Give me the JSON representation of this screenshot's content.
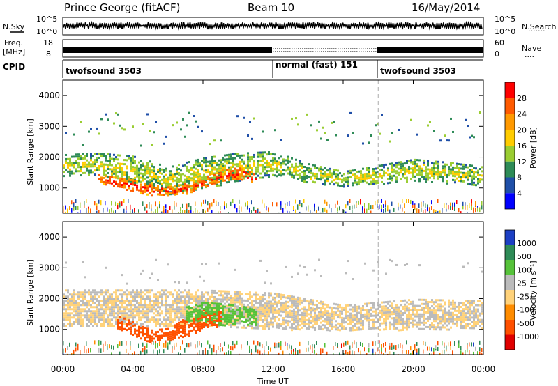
{
  "header": {
    "station": "Prince George (fitACF)",
    "beam": "Beam 10",
    "date": "16/May/2014"
  },
  "nsky_panel": {
    "left_label": "N.Sky",
    "left_ticks": [
      "10^5",
      "10^0"
    ],
    "right_ticks": [
      "10^5",
      "10^0"
    ],
    "right_label": "N.Search",
    "right_marker": "·······"
  },
  "freq_panel": {
    "left_label_1": "Freq.",
    "left_label_2": "[MHz]",
    "left_ticks": [
      "18",
      "8"
    ],
    "right_ticks": [
      "60",
      "0"
    ],
    "right_label": "Nave",
    "right_marker": "····"
  },
  "cpid_panel": {
    "label": "CPID",
    "segments": [
      {
        "name": "twofsound 3503",
        "start_h": 0,
        "end_h": 12
      },
      {
        "name": "normal (fast) 151",
        "start_h": 12,
        "end_h": 18
      },
      {
        "name": "twofsound 3503",
        "start_h": 18,
        "end_h": 24
      }
    ]
  },
  "axes": {
    "xlabel": "Time UT",
    "xticks": [
      "00:00",
      "04:00",
      "08:00",
      "12:00",
      "16:00",
      "20:00",
      "00:00"
    ],
    "xlim_h": [
      0,
      24
    ],
    "ylabel": "Slant Range [km]",
    "yticks": [
      "4000",
      "3000",
      "2000",
      "1000"
    ],
    "ylim_km": [
      180,
      4500
    ],
    "mode_change_h": [
      12,
      18
    ]
  },
  "power_colorbar": {
    "label": "Power [dB]",
    "ticks": [
      "28",
      "24",
      "20",
      "16",
      "12",
      "8",
      "4"
    ],
    "colors": [
      "#ff0000",
      "#ff5a00",
      "#ff9900",
      "#ffcc00",
      "#9acd32",
      "#2e8b57",
      "#1f4fa8",
      "#0000ff"
    ]
  },
  "velocity_colorbar": {
    "label": "Velocity [m s⁻¹]",
    "ticks": [
      "1000",
      "500",
      "100",
      "25",
      "-25",
      "-100",
      "-500",
      "-1000"
    ],
    "colors": [
      "#1c3fc4",
      "#2e8b57",
      "#56c23a",
      "#bbbbbb",
      "#ffd27a",
      "#ff8c00",
      "#ff5000",
      "#e00000"
    ]
  },
  "chart_data": [
    {
      "type": "heatmap",
      "title": "Power",
      "xlabel": "Time UT",
      "ylabel": "Slant Range [km]",
      "x_unit": "hours UT",
      "ylim": [
        180,
        4500
      ],
      "colorbar": "Power [dB]",
      "bands": [
        {
          "x": [
            0,
            2,
            4,
            6,
            8,
            10,
            12,
            14,
            16,
            18,
            20,
            22,
            24
          ],
          "y_center": [
            1750,
            1800,
            1600,
            1250,
            1500,
            1700,
            1800,
            1500,
            1300,
            1450,
            1600,
            1500,
            1400
          ],
          "y_width": [
            700,
            700,
            900,
            900,
            1000,
            900,
            800,
            600,
            500,
            600,
            700,
            700,
            600
          ],
          "level_db": 14
        },
        {
          "x": [
            2,
            4,
            5,
            6,
            7,
            8,
            9,
            10,
            11
          ],
          "y_center": [
            1300,
            1100,
            950,
            900,
            1000,
            1200,
            1400,
            1500,
            1300
          ],
          "y_width": [
            300,
            350,
            350,
            300,
            350,
            400,
            400,
            350,
            300
          ],
          "level_db": 26
        }
      ]
    },
    {
      "type": "heatmap",
      "title": "Velocity",
      "xlabel": "Time UT",
      "ylabel": "Slant Range [km]",
      "x_unit": "hours UT",
      "ylim": [
        180,
        4500
      ],
      "colorbar": "Velocity [m s⁻¹]",
      "bands": [
        {
          "x": [
            0,
            4,
            8,
            12,
            16,
            20,
            24
          ],
          "y_center": [
            1700,
            1700,
            1700,
            1600,
            1400,
            1500,
            1500
          ],
          "y_width": [
            1200,
            1200,
            1200,
            1200,
            800,
            1000,
            900
          ],
          "velocity": 0
        },
        {
          "x": [
            3,
            4,
            5,
            6,
            7,
            8,
            9
          ],
          "y_center": [
            1300,
            1000,
            800,
            850,
            1100,
            1300,
            1400
          ],
          "y_width": [
            400,
            500,
            400,
            400,
            600,
            700,
            500
          ],
          "velocity": -400
        },
        {
          "x": [
            7,
            8,
            9,
            10,
            11
          ],
          "y_center": [
            1500,
            1600,
            1500,
            1500,
            1400
          ],
          "y_width": [
            500,
            600,
            700,
            600,
            500
          ],
          "velocity": 100
        }
      ]
    }
  ]
}
